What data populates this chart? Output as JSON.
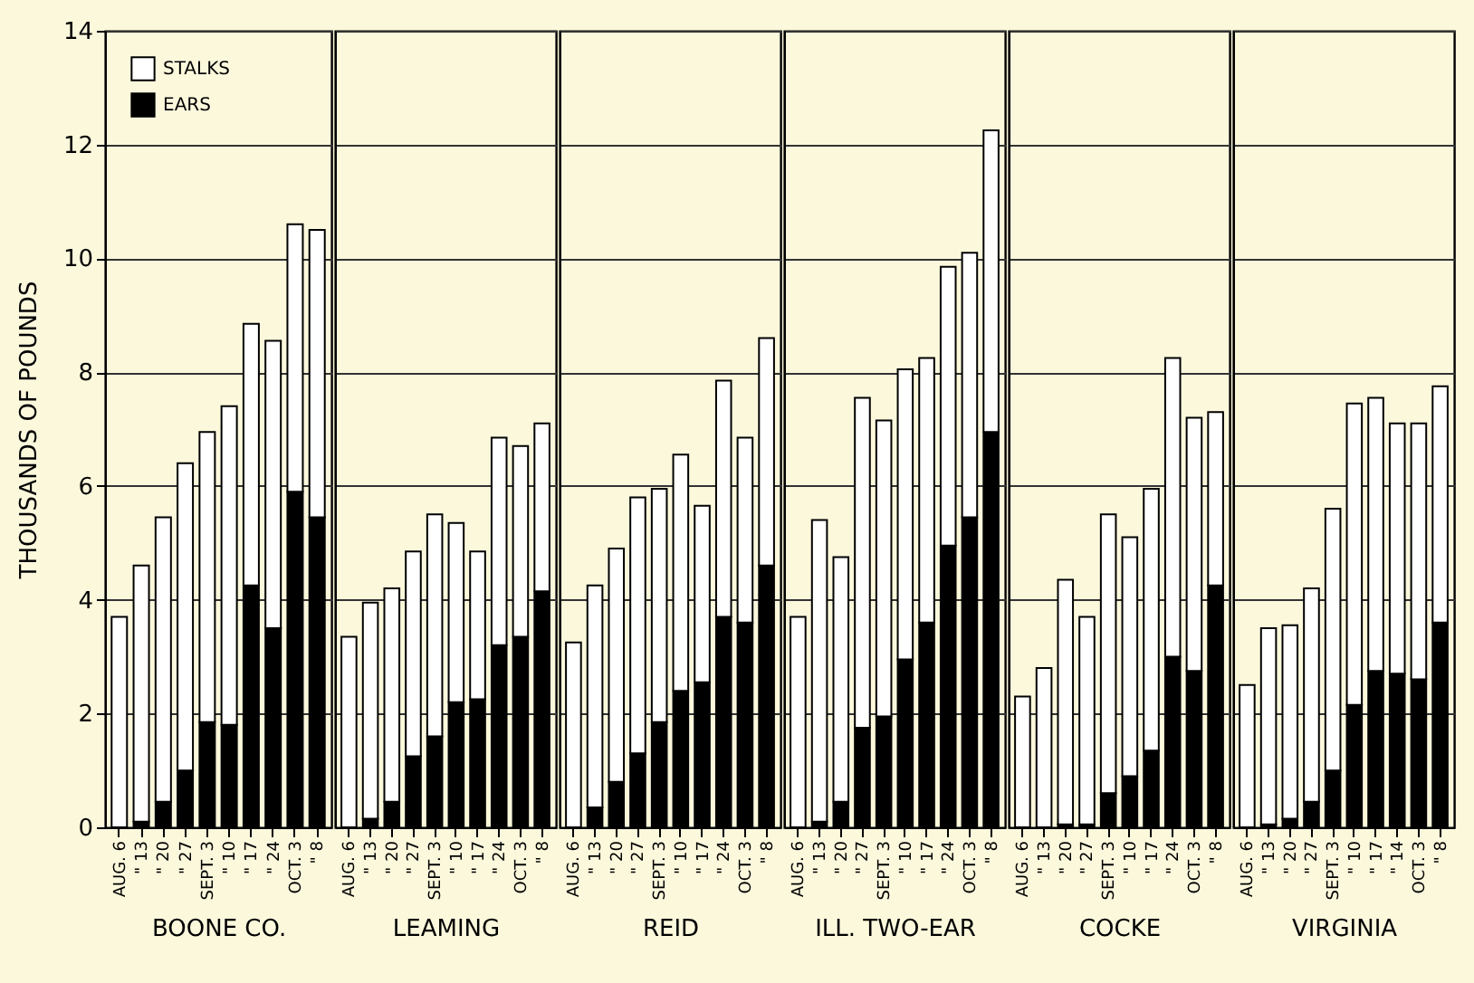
{
  "chart_data": [
    {
      "type": "bar",
      "stacked": true,
      "xlabel": "BOONE CO.",
      "ylabel": "THOUSANDS OF POUNDS",
      "categories": [
        "AUG. 6",
        "\" 13",
        "\" 20",
        "\" 27",
        "SEPT. 3",
        "\" 10",
        "\" 17",
        "\" 24",
        "OCT. 3",
        "\" 8"
      ],
      "ylim": [
        0,
        14
      ],
      "yticks": [
        0,
        2,
        4,
        6,
        8,
        10,
        12,
        14
      ],
      "grid": "y",
      "legend": "top left",
      "series": [
        {
          "name": "EARS",
          "color": "#000000",
          "values": [
            0,
            0.1,
            0.45,
            1.0,
            1.85,
            1.8,
            4.25,
            3.5,
            5.9,
            5.45
          ]
        },
        {
          "name": "STALKS",
          "color": "#ffffff",
          "values": [
            3.7,
            4.5,
            5.0,
            5.4,
            5.1,
            5.6,
            4.6,
            5.05,
            4.7,
            5.05
          ]
        }
      ]
    },
    {
      "type": "bar",
      "stacked": true,
      "xlabel": "LEAMING",
      "categories": [
        "AUG. 6",
        "\" 13",
        "\" 20",
        "\" 27",
        "SEPT. 3",
        "\" 10",
        "\" 17",
        "\" 24",
        "OCT. 3",
        "\" 8"
      ],
      "ylim": [
        0,
        14
      ],
      "yticks": [
        0,
        2,
        4,
        6,
        8,
        10,
        12,
        14
      ],
      "grid": "y",
      "tick_labels": "x",
      "series": [
        {
          "color": "#000000",
          "values": [
            0,
            0.15,
            0.45,
            1.25,
            1.6,
            2.2,
            2.25,
            3.2,
            3.35,
            4.15
          ]
        },
        {
          "color": "#ffffff",
          "values": [
            3.35,
            3.8,
            3.75,
            3.6,
            3.9,
            3.15,
            2.6,
            3.65,
            3.35,
            2.95
          ]
        }
      ]
    },
    {
      "type": "bar",
      "stacked": true,
      "xlabel": "REID",
      "categories": [
        "AUG. 6",
        "\" 13",
        "\" 20",
        "\" 27",
        "SEPT. 3",
        "\" 10",
        "\" 17",
        "\" 24",
        "OCT. 3",
        "\" 8"
      ],
      "ylim": [
        0,
        14
      ],
      "yticks": [
        0,
        2,
        4,
        6,
        8,
        10,
        12,
        14
      ],
      "grid": "y",
      "tick_labels": "x",
      "series": [
        {
          "color": "#000000",
          "values": [
            0,
            0.35,
            0.8,
            1.3,
            1.85,
            2.4,
            2.55,
            3.7,
            3.6,
            4.6
          ]
        },
        {
          "color": "#ffffff",
          "values": [
            3.25,
            3.9,
            4.1,
            4.5,
            4.1,
            4.15,
            3.1,
            4.15,
            3.25,
            4.0
          ]
        }
      ]
    },
    {
      "type": "bar",
      "stacked": true,
      "xlabel": "ILL. TWO-EAR",
      "categories": [
        "AUG. 6",
        "\" 13",
        "\" 20",
        "\" 27",
        "SEPT. 3",
        "\" 10",
        "\" 17",
        "\" 24",
        "OCT. 3",
        "\" 8"
      ],
      "ylim": [
        0,
        14
      ],
      "yticks": [
        0,
        2,
        4,
        6,
        8,
        10,
        12,
        14
      ],
      "grid": "y",
      "tick_labels": "x",
      "series": [
        {
          "color": "#000000",
          "values": [
            0,
            0.1,
            0.45,
            1.75,
            1.95,
            2.95,
            3.6,
            4.95,
            5.45,
            6.95
          ]
        },
        {
          "color": "#ffffff",
          "values": [
            3.7,
            5.3,
            4.3,
            5.8,
            5.2,
            5.1,
            4.65,
            4.9,
            4.65,
            5.3
          ]
        }
      ]
    },
    {
      "type": "bar",
      "stacked": true,
      "xlabel": "COCKE",
      "categories": [
        "AUG. 6",
        "\" 13",
        "\" 20",
        "\" 27",
        "SEPT. 3",
        "\" 10",
        "\" 17",
        "\" 24",
        "OCT. 3",
        "\" 8"
      ],
      "ylim": [
        0,
        14
      ],
      "yticks": [
        0,
        2,
        4,
        6,
        8,
        10,
        12,
        14
      ],
      "grid": "y",
      "tick_labels": "x",
      "series": [
        {
          "color": "#000000",
          "values": [
            0,
            0,
            0.05,
            0.05,
            0.6,
            0.9,
            1.35,
            3.0,
            2.75,
            4.25
          ]
        },
        {
          "color": "#ffffff",
          "values": [
            2.3,
            2.8,
            4.3,
            3.65,
            4.9,
            4.2,
            4.6,
            5.25,
            4.45,
            3.05
          ]
        }
      ]
    },
    {
      "type": "bar",
      "stacked": true,
      "xlabel": "VIRGINIA",
      "categories": [
        "AUG. 6",
        "\" 13",
        "\" 20",
        "\" 27",
        "SEPT. 3",
        "\" 10",
        "\" 17",
        "\" 14",
        "OCT. 3",
        "\" 8"
      ],
      "ylim": [
        0,
        14
      ],
      "yticks": [
        0,
        2,
        4,
        6,
        8,
        10,
        12,
        14
      ],
      "grid": "y",
      "tick_labels": "x",
      "series": [
        {
          "color": "#000000",
          "values": [
            0,
            0.05,
            0.15,
            0.45,
            1.0,
            2.15,
            2.75,
            2.7,
            2.6,
            3.6
          ]
        },
        {
          "color": "#ffffff",
          "values": [
            2.5,
            3.45,
            3.4,
            3.75,
            4.6,
            5.3,
            4.8,
            4.4,
            4.5,
            4.15
          ]
        }
      ]
    }
  ]
}
